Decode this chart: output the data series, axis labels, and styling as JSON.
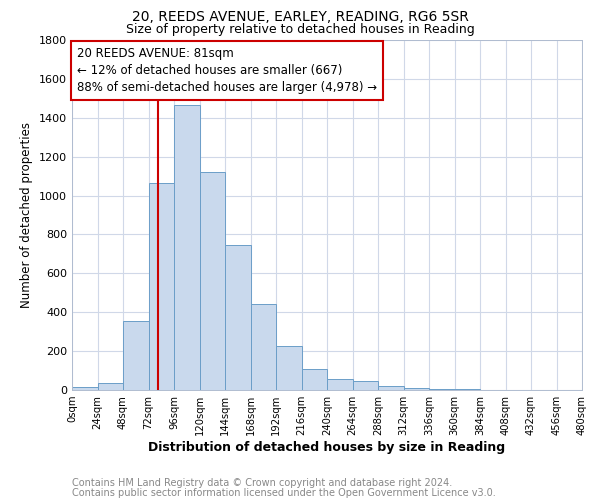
{
  "title1": "20, REEDS AVENUE, EARLEY, READING, RG6 5SR",
  "title2": "Size of property relative to detached houses in Reading",
  "xlabel": "Distribution of detached houses by size in Reading",
  "ylabel": "Number of detached properties",
  "bin_edges": [
    0,
    24,
    48,
    72,
    96,
    120,
    144,
    168,
    192,
    216,
    240,
    264,
    288,
    312,
    336,
    360,
    384,
    408,
    432,
    456,
    480
  ],
  "bar_heights": [
    15,
    35,
    355,
    1065,
    1465,
    1120,
    745,
    440,
    225,
    110,
    58,
    47,
    20,
    12,
    5,
    3,
    2,
    1,
    1,
    1
  ],
  "bar_facecolor": "#c9d9ed",
  "bar_edgecolor": "#6b9ec8",
  "grid_color": "#d0d8e8",
  "vline_x": 81,
  "vline_color": "#cc0000",
  "annotation_title": "20 REEDS AVENUE: 81sqm",
  "annotation_line1": "← 12% of detached houses are smaller (667)",
  "annotation_line2": "88% of semi-detached houses are larger (4,978) →",
  "footer1": "Contains HM Land Registry data © Crown copyright and database right 2024.",
  "footer2": "Contains public sector information licensed under the Open Government Licence v3.0.",
  "ylim": [
    0,
    1800
  ],
  "yticks": [
    0,
    200,
    400,
    600,
    800,
    1000,
    1200,
    1400,
    1600,
    1800
  ],
  "xtick_labels": [
    "0sqm",
    "24sqm",
    "48sqm",
    "72sqm",
    "96sqm",
    "120sqm",
    "144sqm",
    "168sqm",
    "192sqm",
    "216sqm",
    "240sqm",
    "264sqm",
    "288sqm",
    "312sqm",
    "336sqm",
    "360sqm",
    "384sqm",
    "408sqm",
    "432sqm",
    "456sqm",
    "480sqm"
  ],
  "title1_fontsize": 10,
  "title2_fontsize": 9,
  "ylabel_fontsize": 8.5,
  "xlabel_fontsize": 9,
  "footer_fontsize": 7,
  "footer_color": "#888888",
  "annotation_fontsize": 8.5
}
